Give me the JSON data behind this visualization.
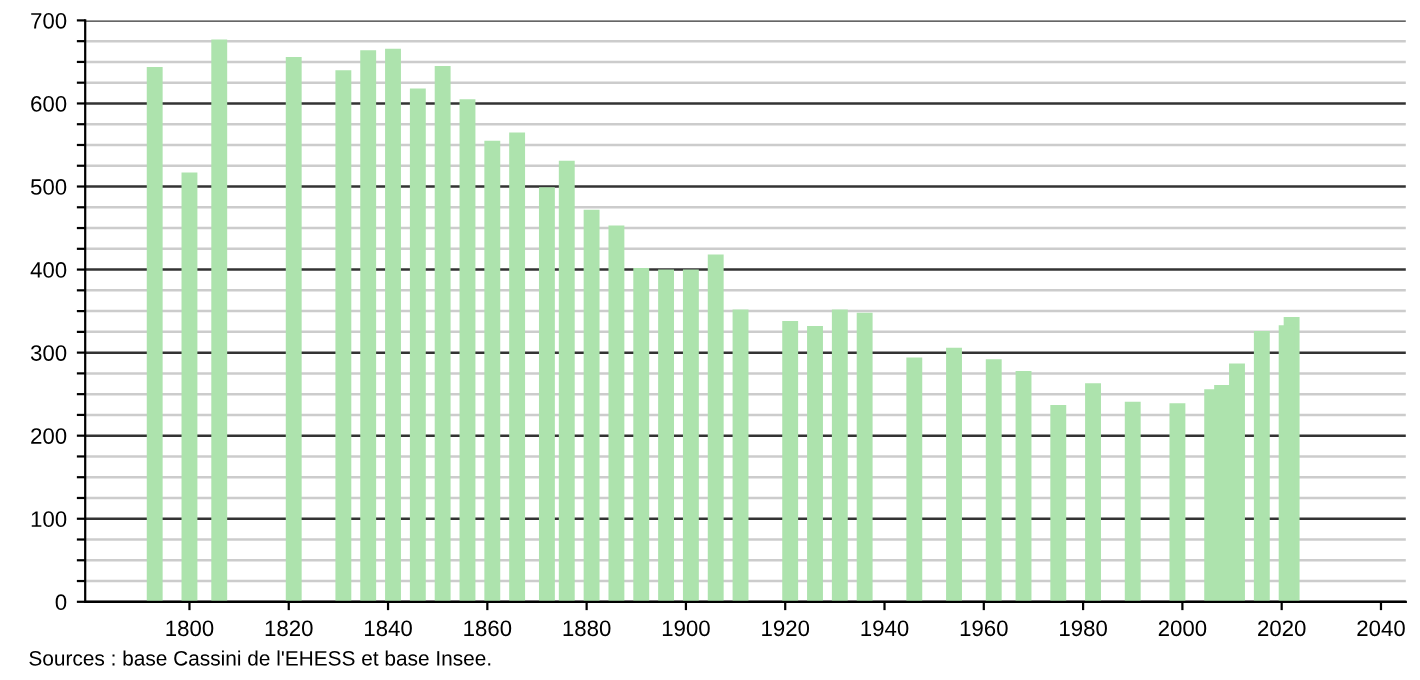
{
  "chart_data": {
    "type": "bar",
    "color": "#ade3ad",
    "x": [
      1793,
      1800,
      1806,
      1821,
      1831,
      1836,
      1841,
      1846,
      1851,
      1856,
      1861,
      1866,
      1872,
      1876,
      1881,
      1886,
      1891,
      1896,
      1901,
      1906,
      1911,
      1921,
      1926,
      1931,
      1936,
      1946,
      1954,
      1962,
      1968,
      1975,
      1982,
      1990,
      1999,
      2006,
      2008,
      2011,
      2016,
      2021,
      2022
    ],
    "values": [
      644,
      517,
      677,
      656,
      640,
      664,
      666,
      618,
      645,
      605,
      555,
      565,
      499,
      531,
      472,
      453,
      402,
      400,
      400,
      418,
      352,
      338,
      332,
      352,
      348,
      294,
      306,
      292,
      278,
      237,
      263,
      241,
      239,
      256,
      261,
      287,
      326,
      333,
      343
    ],
    "xlim": [
      1779,
      2045
    ],
    "xticks": [
      1800,
      1820,
      1840,
      1860,
      1880,
      1900,
      1920,
      1940,
      1960,
      1980,
      2000,
      2020,
      2040
    ],
    "ylim": [
      0,
      700
    ],
    "yticks": [
      0,
      {
        "value": 25,
        "label": null
      },
      {
        "value": 50,
        "label": null
      },
      {
        "value": 75,
        "label": null
      },
      100,
      {
        "value": 125,
        "label": null
      },
      {
        "value": 150,
        "label": null
      },
      {
        "value": 175,
        "label": null
      },
      200,
      {
        "value": 225,
        "label": null
      },
      {
        "value": 250,
        "label": null
      },
      {
        "value": 275,
        "label": null
      },
      300,
      {
        "value": 325,
        "label": null
      },
      {
        "value": 350,
        "label": null
      },
      {
        "value": 375,
        "label": null
      },
      400,
      {
        "value": 425,
        "label": null
      },
      {
        "value": 450,
        "label": null
      },
      {
        "value": 475,
        "label": null
      },
      500,
      {
        "value": 525,
        "label": null
      },
      {
        "value": 550,
        "label": null
      },
      {
        "value": 575,
        "label": null
      },
      600,
      {
        "value": 625,
        "label": null
      },
      {
        "value": 650,
        "label": null
      },
      {
        "value": 675,
        "label": null
      },
      700
    ],
    "grid": "y",
    "annotations": [
      "Sources : base Cassini de l'EHESS et base Insee."
    ]
  }
}
